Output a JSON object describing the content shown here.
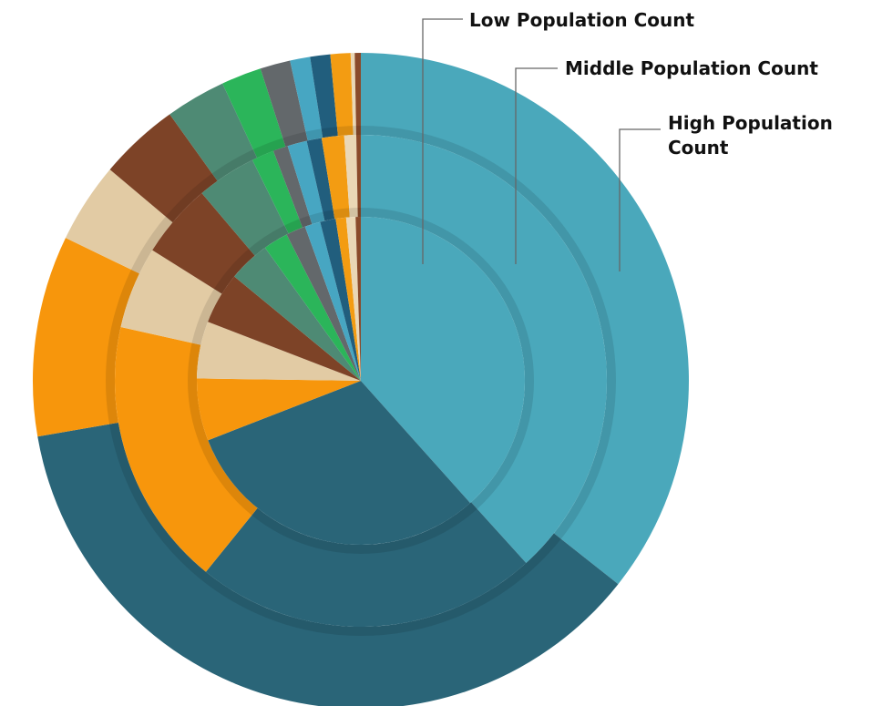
{
  "chart_data": {
    "type": "pie",
    "subtype": "nested-donut",
    "title": "",
    "colors": {
      "c1": "#4aa8bb",
      "c2": "#2a6578",
      "c3": "#f7960c",
      "c4": "#e2cba4",
      "c5": "#7d4327",
      "c6": "#4e8a74",
      "c7": "#2bb55a",
      "c8": "#63686b",
      "c9": "#47a6c2",
      "c10": "#215e7d",
      "c11": "#f39c12",
      "c12": "#ead7b5",
      "c13": "#8a4a2a"
    },
    "series": [
      {
        "name": "Low Population Count",
        "values": [
          37.5,
          30.0,
          6.0,
          5.5,
          5.0,
          4.0,
          2.4,
          1.9,
          1.5,
          1.5,
          1.0,
          0.9,
          0.5
        ]
      },
      {
        "name": "Middle Population Count",
        "values": [
          39.0,
          23.0,
          18.0,
          5.5,
          5.0,
          4.0,
          1.5,
          1.0,
          1.3,
          1.0,
          1.5,
          0.8,
          0.3
        ]
      },
      {
        "name": "High Population Count",
        "values": [
          36.0,
          37.0,
          10.0,
          4.0,
          4.0,
          3.0,
          2.0,
          1.5,
          1.0,
          1.0,
          1.0,
          0.2,
          0.3
        ]
      }
    ],
    "legend": {
      "placement": "top-right",
      "entries": [
        "Low Population Count",
        "Middle Population Count",
        "High Population Count"
      ]
    }
  }
}
